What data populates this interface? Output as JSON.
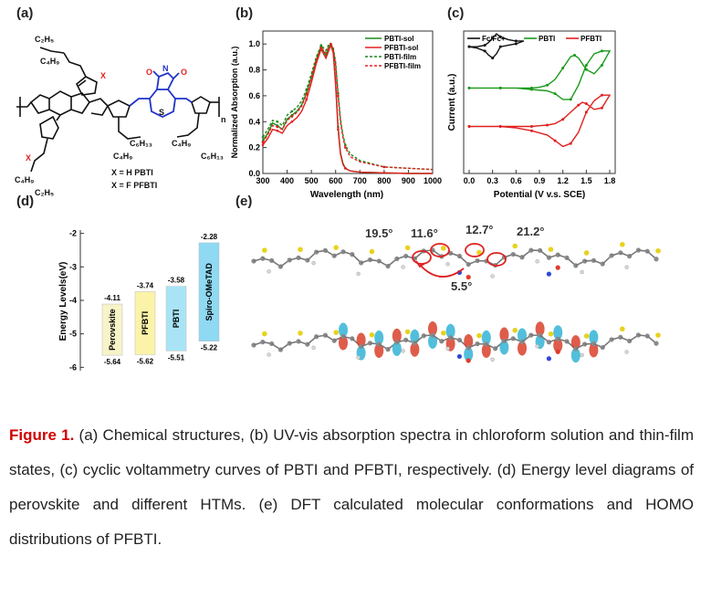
{
  "panels": {
    "a": {
      "label": "(a)",
      "texts": {
        "c2h5_top": "C₂H₅",
        "c4h9_top": "C₄H₉",
        "x_top": "X",
        "x_bottom": "X",
        "n_imide": "N",
        "o_left": "O",
        "o_right": "O",
        "s_label": "S",
        "c6h13_a": "C₆H₁₃",
        "c4h9_a": "C₄H₉",
        "c4h9_b": "C₄H₉",
        "c6h13_b": "C₆H₁₃",
        "c4h9_bottom": "C₄H₉",
        "c2h5_bottom": "C₂H₅",
        "n_sub": "n",
        "legend_h": "X = H  PBTI",
        "legend_f": "X = F  PFBTI"
      }
    },
    "b": {
      "label": "(b)",
      "xlabel": "Wavelength (nm)",
      "ylabel": "Normalized Absorption (a.u.)"
    },
    "c": {
      "label": "(c)",
      "xlabel": "Potential (V v.s. SCE)",
      "ylabel": "Current (a.u.)"
    },
    "d": {
      "label": "(d)",
      "ylabel": "Energy Levels(eV)"
    },
    "e": {
      "label": "(e)",
      "angles": [
        "19.5°",
        "11.6°",
        "12.7°",
        "21.2°",
        "5.5°"
      ]
    }
  },
  "caption": {
    "figure_label": "Figure 1.",
    "text": " (a) Chemical structures, (b) UV-vis absorption spectra in chloroform solution and thin-film states, (c) cyclic voltammetry curves of PBTI and PFBTI, respectively. (d) Energy level diagrams of perovskite and different HTMs. (e) DFT calculated molecular conformations and HOMO distributions of PFBTI."
  },
  "chart_data": [
    {
      "id": "b",
      "type": "line",
      "xlabel": "Wavelength (nm)",
      "ylabel": "Normalized Absorption (a.u.)",
      "xlim": [
        300,
        1000
      ],
      "ylim": [
        0,
        1.1
      ],
      "xticks": [
        "300",
        "400",
        "500",
        "600",
        "700",
        "800",
        "900",
        "1000"
      ],
      "yticks": [
        "0.0",
        "0.2",
        "0.4",
        "0.6",
        "0.8",
        "1.0"
      ],
      "legend_position": "top-right",
      "series": [
        {
          "name": "PBTI-sol",
          "color": "#1a8a1a",
          "dash": "solid",
          "x": [
            300,
            320,
            340,
            360,
            380,
            400,
            420,
            440,
            460,
            480,
            500,
            520,
            540,
            560,
            570,
            580,
            590,
            600,
            610,
            620,
            630,
            640,
            660,
            700,
            800,
            900,
            1000
          ],
          "y": [
            0.25,
            0.31,
            0.39,
            0.37,
            0.34,
            0.42,
            0.45,
            0.48,
            0.53,
            0.62,
            0.74,
            0.88,
            0.98,
            0.91,
            0.97,
            1.0,
            0.94,
            0.7,
            0.36,
            0.16,
            0.08,
            0.04,
            0.02,
            0.01,
            0.005,
            0.0,
            0.0
          ]
        },
        {
          "name": "PFBTI-sol",
          "color": "#e02020",
          "dash": "solid",
          "x": [
            300,
            320,
            340,
            360,
            380,
            400,
            420,
            440,
            460,
            480,
            500,
            520,
            540,
            560,
            570,
            580,
            590,
            600,
            610,
            620,
            630,
            640,
            660,
            700,
            800,
            900,
            1000
          ],
          "y": [
            0.22,
            0.27,
            0.34,
            0.33,
            0.31,
            0.37,
            0.4,
            0.43,
            0.48,
            0.57,
            0.7,
            0.85,
            0.96,
            0.89,
            0.94,
            0.99,
            0.93,
            0.68,
            0.34,
            0.15,
            0.07,
            0.04,
            0.02,
            0.01,
            0.005,
            0.0,
            0.0
          ]
        },
        {
          "name": "PBTI-film",
          "color": "#1a8a1a",
          "dash": "dashed",
          "x": [
            300,
            320,
            340,
            360,
            380,
            400,
            420,
            440,
            460,
            480,
            500,
            520,
            540,
            560,
            570,
            580,
            590,
            600,
            610,
            620,
            630,
            640,
            660,
            700,
            800,
            900,
            1000
          ],
          "y": [
            0.28,
            0.34,
            0.41,
            0.4,
            0.37,
            0.45,
            0.48,
            0.51,
            0.56,
            0.65,
            0.77,
            0.9,
            0.99,
            0.95,
            0.99,
            1.0,
            0.97,
            0.86,
            0.62,
            0.42,
            0.3,
            0.22,
            0.15,
            0.1,
            0.05,
            0.04,
            0.03
          ]
        },
        {
          "name": "PFBTI-film",
          "color": "#e02020",
          "dash": "dashed",
          "x": [
            300,
            320,
            340,
            360,
            380,
            400,
            420,
            440,
            460,
            480,
            500,
            520,
            540,
            560,
            570,
            580,
            590,
            600,
            610,
            620,
            630,
            640,
            660,
            700,
            800,
            900,
            1000
          ],
          "y": [
            0.24,
            0.3,
            0.37,
            0.36,
            0.34,
            0.41,
            0.44,
            0.47,
            0.52,
            0.61,
            0.74,
            0.88,
            0.97,
            0.93,
            0.97,
            1.0,
            0.96,
            0.84,
            0.6,
            0.4,
            0.28,
            0.2,
            0.13,
            0.09,
            0.05,
            0.04,
            0.03
          ]
        }
      ]
    },
    {
      "id": "c",
      "type": "line",
      "xlabel": "Potential (V v.s. SCE)",
      "ylabel": "Current (a.u.)",
      "xlim": [
        0,
        1.8
      ],
      "ylim": [
        0,
        10
      ],
      "xticks": [
        "0.0",
        "0.3",
        "0.6",
        "0.9",
        "1.2",
        "1.5",
        "1.8"
      ],
      "legend_position": "top",
      "series": [
        {
          "name": "Fc/Fc+",
          "color": "#111111",
          "x": [
            0.0,
            0.1,
            0.2,
            0.25,
            0.3,
            0.35,
            0.4,
            0.5,
            0.6,
            0.7,
            0.6,
            0.5,
            0.4,
            0.35,
            0.3,
            0.25,
            0.2,
            0.1,
            0.0
          ],
          "y": [
            8.9,
            8.9,
            9.0,
            9.2,
            9.5,
            9.8,
            9.6,
            9.4,
            9.3,
            9.3,
            9.1,
            9.0,
            8.9,
            8.4,
            8.1,
            8.3,
            8.6,
            8.8,
            8.9
          ]
        },
        {
          "name": "PBTI",
          "color": "#1a9a1a",
          "x": [
            0.0,
            0.2,
            0.4,
            0.6,
            0.8,
            0.9,
            1.0,
            1.1,
            1.2,
            1.3,
            1.35,
            1.4,
            1.5,
            1.6,
            1.7,
            1.8,
            1.7,
            1.6,
            1.5,
            1.4,
            1.3,
            1.2,
            1.1,
            1.0,
            0.8,
            0.6,
            0.4,
            0.2,
            0.0
          ],
          "y": [
            6.0,
            6.0,
            6.0,
            6.0,
            6.0,
            6.05,
            6.2,
            6.6,
            7.4,
            8.2,
            8.3,
            8.1,
            7.3,
            7.0,
            7.6,
            8.6,
            8.6,
            8.4,
            7.6,
            6.2,
            5.2,
            5.2,
            5.6,
            5.8,
            5.9,
            6.0,
            6.0,
            6.0,
            6.0
          ]
        },
        {
          "name": "PFBTI",
          "color": "#e02020",
          "x": [
            0.0,
            0.2,
            0.4,
            0.6,
            0.8,
            0.9,
            1.0,
            1.1,
            1.2,
            1.3,
            1.4,
            1.45,
            1.5,
            1.6,
            1.7,
            1.8,
            1.7,
            1.6,
            1.5,
            1.4,
            1.3,
            1.2,
            1.1,
            1.0,
            0.8,
            0.6,
            0.4,
            0.2,
            0.0
          ],
          "y": [
            3.3,
            3.3,
            3.3,
            3.3,
            3.3,
            3.35,
            3.4,
            3.5,
            3.8,
            4.3,
            4.8,
            5.0,
            4.9,
            4.5,
            4.6,
            5.5,
            5.5,
            5.1,
            4.3,
            2.9,
            2.1,
            1.9,
            2.3,
            2.7,
            3.0,
            3.2,
            3.3,
            3.3,
            3.3
          ]
        }
      ]
    },
    {
      "id": "d",
      "type": "bar",
      "ylabel": "Energy Levels(eV)",
      "ylim": [
        -6.1,
        -1.9
      ],
      "yticks": [
        "-2",
        "-3",
        "-4",
        "-5",
        "-6"
      ],
      "categories": [
        "Perovskite",
        "PFBTI",
        "PBTI",
        "Spiro-OMeTAD"
      ],
      "series": [
        {
          "name": "LUMO",
          "values": [
            -4.11,
            -3.74,
            -3.58,
            -2.28
          ]
        },
        {
          "name": "HOMO",
          "values": [
            -5.64,
            -5.62,
            -5.51,
            -5.22
          ]
        }
      ],
      "top_labels": [
        "-4.11",
        "-3.74",
        "-3.58",
        "-2.28"
      ],
      "bottom_labels": [
        "-5.64",
        "-5.62",
        "-5.51",
        "-5.22"
      ],
      "colors": [
        "#f6f4c8",
        "#fbf3a8",
        "#a9e4f6",
        "#8fd9f2"
      ]
    }
  ]
}
